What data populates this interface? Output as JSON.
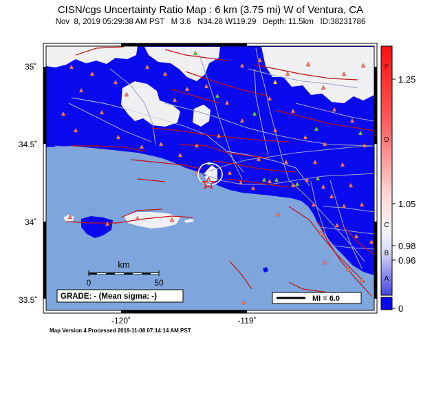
{
  "title": "CISN/cgs Uncertainty Ratio Map : 6 km (3.75 mi) W of Ventura, CA",
  "subtitle": "Nov  8, 2019 05:29:38 AM PST   M 3.6   N34.28 W119.29   Depth: 11.5km   ID:38231786",
  "lat_ticks": [
    "35˚",
    "34.5˚",
    "34˚",
    "33.5˚"
  ],
  "lon_ticks": [
    "-120˚",
    "-119˚"
  ],
  "scalebar": {
    "unit": "km",
    "start": "0",
    "end": "50"
  },
  "grade": "GRADE: - (Mean sigma: -)",
  "legend_mi": "MI = 6.0",
  "colorbar": {
    "grades": [
      "F",
      "D",
      "C",
      "B",
      "A"
    ],
    "values": [
      "1.25",
      "1.05",
      "0.98",
      "0.96",
      "0"
    ]
  },
  "footer": "Map Version 4 Processed 2019-11-08 07:14:14 AM PST",
  "colors": {
    "ocean": "#7ea6dd",
    "land_high": "#0000ff",
    "land_low": "#f0f0f2",
    "station": "#f08070",
    "station_alt": "#50e050",
    "fault": "#c01010",
    "road": "#9da0c8"
  }
}
